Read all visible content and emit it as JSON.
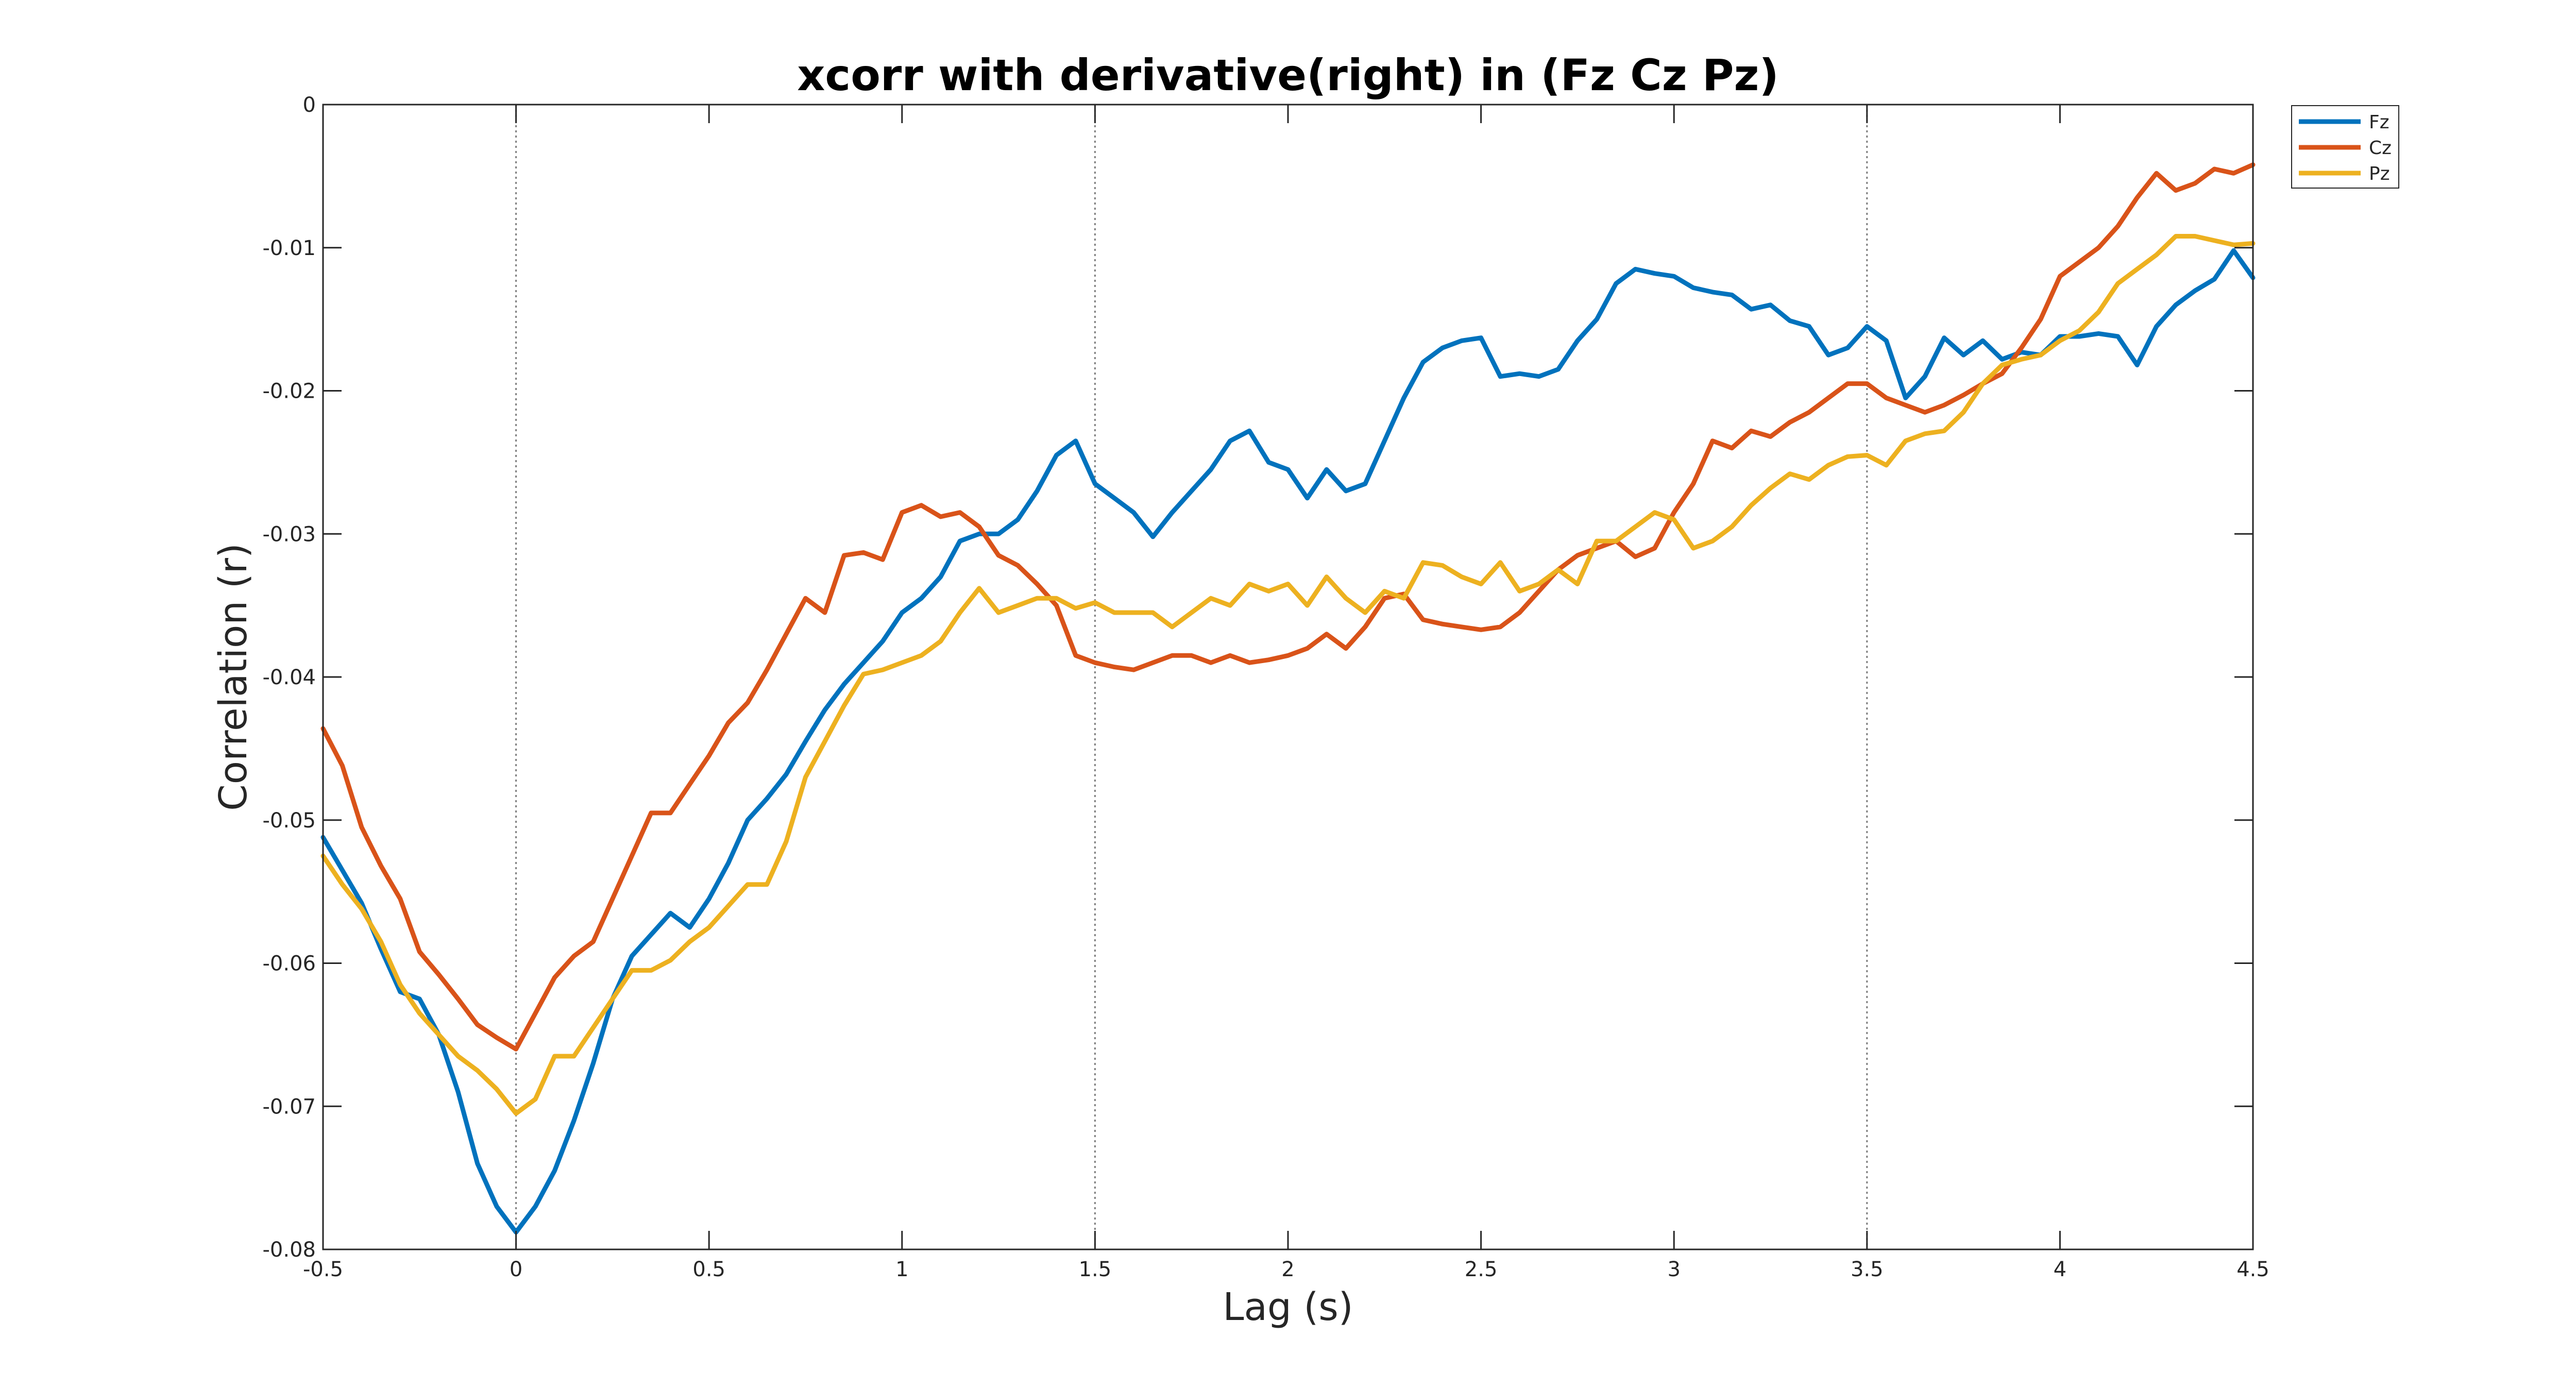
{
  "chart_data": {
    "type": "line",
    "title": "xcorr with derivative(right) in (Fz Cz Pz)",
    "xlabel": "Lag (s)",
    "ylabel": "Correlation (r)",
    "xlim": [
      -0.5,
      4.5
    ],
    "ylim": [
      -0.08,
      0
    ],
    "xticks": [
      -0.5,
      0,
      0.5,
      1,
      1.5,
      2,
      2.5,
      3,
      3.5,
      4,
      4.5
    ],
    "xtick_labels": [
      "-0.5",
      "0",
      "0.5",
      "1",
      "1.5",
      "2",
      "2.5",
      "3",
      "3.5",
      "4",
      "4.5"
    ],
    "yticks": [
      0,
      -0.01,
      -0.02,
      -0.03,
      -0.04,
      -0.05,
      -0.06,
      -0.07,
      -0.08
    ],
    "ytick_labels": [
      "0",
      "-0.01",
      "-0.02",
      "-0.03",
      "-0.04",
      "-0.05",
      "-0.06",
      "-0.07",
      "-0.08"
    ],
    "vlines": [
      0,
      1.5,
      3.5
    ],
    "grid": false,
    "legend_position": "outside-top-right",
    "series": [
      {
        "name": "Fz",
        "color": "#0072BD",
        "x": [
          -0.5,
          -0.45,
          -0.4,
          -0.35,
          -0.3,
          -0.25,
          -0.2,
          -0.15,
          -0.1,
          -0.05,
          0,
          0.05,
          0.1,
          0.15,
          0.2,
          0.25,
          0.3,
          0.35,
          0.4,
          0.45,
          0.5,
          0.55,
          0.6,
          0.65,
          0.7,
          0.75,
          0.8,
          0.85,
          0.9,
          0.95,
          1,
          1.05,
          1.1,
          1.15,
          1.2,
          1.25,
          1.3,
          1.35,
          1.4,
          1.45,
          1.5,
          1.55,
          1.6,
          1.65,
          1.7,
          1.75,
          1.8,
          1.85,
          1.9,
          1.95,
          2,
          2.05,
          2.1,
          2.15,
          2.2,
          2.25,
          2.3,
          2.35,
          2.4,
          2.45,
          2.5,
          2.55,
          2.6,
          2.65,
          2.7,
          2.75,
          2.8,
          2.85,
          2.9,
          2.95,
          3,
          3.05,
          3.1,
          3.15,
          3.2,
          3.25,
          3.3,
          3.35,
          3.4,
          3.45,
          3.5,
          3.55,
          3.6,
          3.65,
          3.7,
          3.75,
          3.8,
          3.85,
          3.9,
          3.95,
          4,
          4.05,
          4.1,
          4.15,
          4.2,
          4.25,
          4.3,
          4.35,
          4.4,
          4.45,
          4.5
        ],
        "y": [
          -0.0512,
          -0.0535,
          -0.0558,
          -0.059,
          -0.062,
          -0.0625,
          -0.065,
          -0.069,
          -0.074,
          -0.077,
          -0.0788,
          -0.077,
          -0.0745,
          -0.071,
          -0.067,
          -0.0625,
          -0.0595,
          -0.058,
          -0.0565,
          -0.0575,
          -0.0555,
          -0.053,
          -0.05,
          -0.0485,
          -0.0468,
          -0.0445,
          -0.0423,
          -0.0405,
          -0.039,
          -0.0375,
          -0.0355,
          -0.0345,
          -0.033,
          -0.0305,
          -0.03,
          -0.03,
          -0.029,
          -0.027,
          -0.0245,
          -0.0235,
          -0.0265,
          -0.0275,
          -0.0285,
          -0.0302,
          -0.0285,
          -0.027,
          -0.0255,
          -0.0235,
          -0.0228,
          -0.025,
          -0.0255,
          -0.0275,
          -0.0255,
          -0.027,
          -0.0265,
          -0.0235,
          -0.0205,
          -0.018,
          -0.017,
          -0.0165,
          -0.0163,
          -0.019,
          -0.0188,
          -0.019,
          -0.0185,
          -0.0165,
          -0.015,
          -0.0125,
          -0.0115,
          -0.0118,
          -0.012,
          -0.0128,
          -0.0131,
          -0.0133,
          -0.0143,
          -0.014,
          -0.0151,
          -0.0155,
          -0.0175,
          -0.017,
          -0.0155,
          -0.0165,
          -0.0205,
          -0.019,
          -0.0163,
          -0.0175,
          -0.0165,
          -0.0178,
          -0.0173,
          -0.0175,
          -0.0162,
          -0.0162,
          -0.016,
          -0.0162,
          -0.0182,
          -0.0155,
          -0.014,
          -0.013,
          -0.0122,
          -0.0102,
          -0.0121
        ]
      },
      {
        "name": "Cz",
        "color": "#D95319",
        "x": [
          -0.5,
          -0.45,
          -0.4,
          -0.35,
          -0.3,
          -0.25,
          -0.2,
          -0.15,
          -0.1,
          -0.05,
          0,
          0.05,
          0.1,
          0.15,
          0.2,
          0.25,
          0.3,
          0.35,
          0.4,
          0.45,
          0.5,
          0.55,
          0.6,
          0.65,
          0.7,
          0.75,
          0.8,
          0.85,
          0.9,
          0.95,
          1,
          1.05,
          1.1,
          1.15,
          1.2,
          1.25,
          1.3,
          1.35,
          1.4,
          1.45,
          1.5,
          1.55,
          1.6,
          1.65,
          1.7,
          1.75,
          1.8,
          1.85,
          1.9,
          1.95,
          2,
          2.05,
          2.1,
          2.15,
          2.2,
          2.25,
          2.3,
          2.35,
          2.4,
          2.45,
          2.5,
          2.55,
          2.6,
          2.65,
          2.7,
          2.75,
          2.8,
          2.85,
          2.9,
          2.95,
          3,
          3.05,
          3.1,
          3.15,
          3.2,
          3.25,
          3.3,
          3.35,
          3.4,
          3.45,
          3.5,
          3.55,
          3.6,
          3.65,
          3.7,
          3.75,
          3.8,
          3.85,
          3.9,
          3.95,
          4,
          4.05,
          4.1,
          4.15,
          4.2,
          4.25,
          4.3,
          4.35,
          4.4,
          4.45,
          4.5
        ],
        "y": [
          -0.0436,
          -0.0462,
          -0.0505,
          -0.0532,
          -0.0555,
          -0.0592,
          -0.0608,
          -0.0625,
          -0.0643,
          -0.0652,
          -0.066,
          -0.0635,
          -0.061,
          -0.0595,
          -0.0585,
          -0.0555,
          -0.0525,
          -0.0495,
          -0.0495,
          -0.0475,
          -0.0455,
          -0.0432,
          -0.0418,
          -0.0395,
          -0.037,
          -0.0345,
          -0.0355,
          -0.0315,
          -0.0313,
          -0.0318,
          -0.0285,
          -0.028,
          -0.0288,
          -0.0285,
          -0.0295,
          -0.0315,
          -0.0322,
          -0.0335,
          -0.035,
          -0.0385,
          -0.039,
          -0.0393,
          -0.0395,
          -0.039,
          -0.0385,
          -0.0385,
          -0.039,
          -0.0385,
          -0.039,
          -0.0388,
          -0.0385,
          -0.038,
          -0.037,
          -0.038,
          -0.0365,
          -0.0345,
          -0.0342,
          -0.036,
          -0.0363,
          -0.0365,
          -0.0367,
          -0.0365,
          -0.0355,
          -0.034,
          -0.0325,
          -0.0315,
          -0.031,
          -0.0305,
          -0.0316,
          -0.031,
          -0.0285,
          -0.0265,
          -0.0235,
          -0.024,
          -0.0228,
          -0.0232,
          -0.0222,
          -0.0215,
          -0.0205,
          -0.0195,
          -0.0195,
          -0.0205,
          -0.021,
          -0.0215,
          -0.021,
          -0.0203,
          -0.0195,
          -0.0188,
          -0.017,
          -0.015,
          -0.012,
          -0.011,
          -0.01,
          -0.0085,
          -0.0065,
          -0.0048,
          -0.006,
          -0.0055,
          -0.0045,
          -0.0048,
          -0.0042
        ]
      },
      {
        "name": "Pz",
        "color": "#EDB120",
        "x": [
          -0.5,
          -0.45,
          -0.4,
          -0.35,
          -0.3,
          -0.25,
          -0.2,
          -0.15,
          -0.1,
          -0.05,
          0,
          0.05,
          0.1,
          0.15,
          0.2,
          0.25,
          0.3,
          0.35,
          0.4,
          0.45,
          0.5,
          0.55,
          0.6,
          0.65,
          0.7,
          0.75,
          0.8,
          0.85,
          0.9,
          0.95,
          1,
          1.05,
          1.1,
          1.15,
          1.2,
          1.25,
          1.3,
          1.35,
          1.4,
          1.45,
          1.5,
          1.55,
          1.6,
          1.65,
          1.7,
          1.75,
          1.8,
          1.85,
          1.9,
          1.95,
          2,
          2.05,
          2.1,
          2.15,
          2.2,
          2.25,
          2.3,
          2.35,
          2.4,
          2.45,
          2.5,
          2.55,
          2.6,
          2.65,
          2.7,
          2.75,
          2.8,
          2.85,
          2.9,
          2.95,
          3,
          3.05,
          3.1,
          3.15,
          3.2,
          3.25,
          3.3,
          3.35,
          3.4,
          3.45,
          3.5,
          3.55,
          3.6,
          3.65,
          3.7,
          3.75,
          3.8,
          3.85,
          3.9,
          3.95,
          4,
          4.05,
          4.1,
          4.15,
          4.2,
          4.25,
          4.3,
          4.35,
          4.4,
          4.45,
          4.5
        ],
        "y": [
          -0.0525,
          -0.0545,
          -0.0562,
          -0.0585,
          -0.0615,
          -0.0635,
          -0.065,
          -0.0665,
          -0.0675,
          -0.0688,
          -0.0705,
          -0.0695,
          -0.0665,
          -0.0665,
          -0.0645,
          -0.0625,
          -0.0605,
          -0.0605,
          -0.0598,
          -0.0585,
          -0.0575,
          -0.056,
          -0.0545,
          -0.0545,
          -0.0515,
          -0.047,
          -0.0445,
          -0.042,
          -0.0398,
          -0.0395,
          -0.039,
          -0.0385,
          -0.0375,
          -0.0355,
          -0.0338,
          -0.0355,
          -0.035,
          -0.0345,
          -0.0345,
          -0.0352,
          -0.0348,
          -0.0355,
          -0.0355,
          -0.0355,
          -0.0365,
          -0.0355,
          -0.0345,
          -0.035,
          -0.0335,
          -0.034,
          -0.0335,
          -0.035,
          -0.033,
          -0.0345,
          -0.0355,
          -0.034,
          -0.0345,
          -0.032,
          -0.0322,
          -0.033,
          -0.0335,
          -0.032,
          -0.034,
          -0.0335,
          -0.0325,
          -0.0335,
          -0.0305,
          -0.0305,
          -0.0295,
          -0.0285,
          -0.029,
          -0.031,
          -0.0305,
          -0.0295,
          -0.028,
          -0.0268,
          -0.0258,
          -0.0262,
          -0.0252,
          -0.0246,
          -0.0245,
          -0.0252,
          -0.0235,
          -0.023,
          -0.0228,
          -0.0215,
          -0.0195,
          -0.0182,
          -0.0178,
          -0.0175,
          -0.0165,
          -0.0158,
          -0.0145,
          -0.0125,
          -0.0115,
          -0.0105,
          -0.0092,
          -0.0092,
          -0.0095,
          -0.0098,
          -0.0097
        ]
      }
    ]
  }
}
